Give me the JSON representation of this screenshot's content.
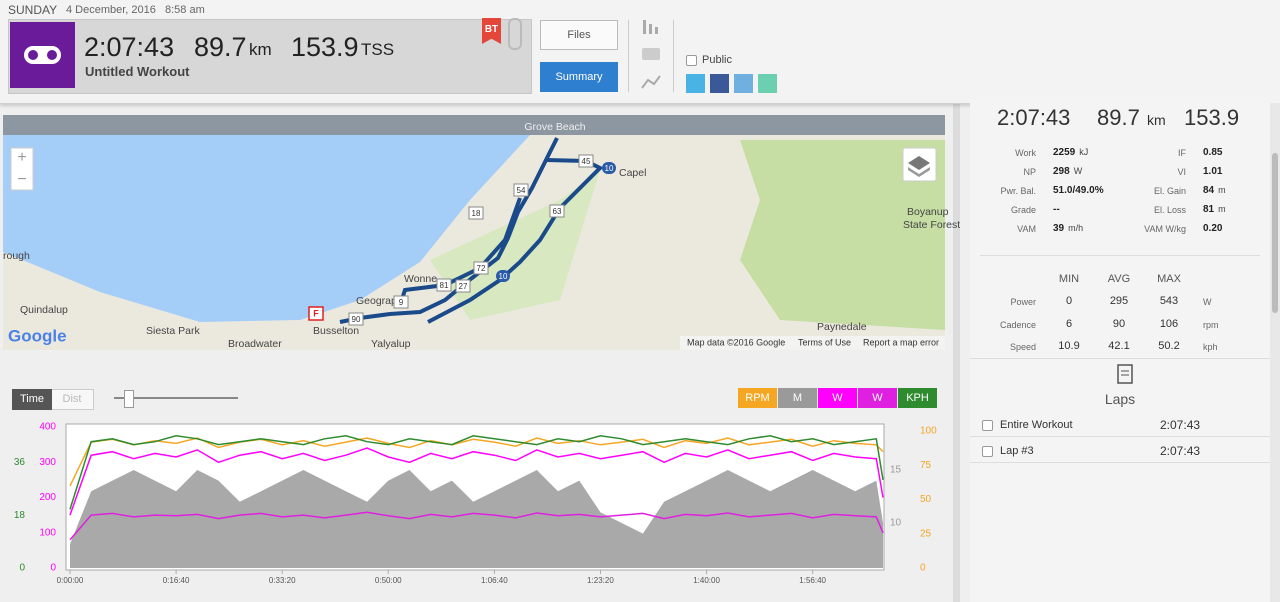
{
  "header": {
    "day": "SUNDAY",
    "date": "4 December, 2016",
    "time": "8:58 am",
    "duration": "2:07:43",
    "distance": "89.7",
    "distance_unit": "km",
    "tss": "153.9",
    "tss_unit": "TSS",
    "workout_title": "Untitled Workout",
    "badge": "BT",
    "buttons": [
      "Files",
      "Summary"
    ],
    "public_label": "Public"
  },
  "map": {
    "labels": [
      "Grove Beach",
      "Capel",
      "Boyanup",
      "State Forest",
      "rough",
      "Quindalup",
      "Siesta Park",
      "Broadwater",
      "Busselton",
      "Yalyalup",
      "Paynedale",
      "Geograp",
      "Wonne"
    ],
    "route_markers": [
      "45",
      "10",
      "54",
      "18",
      "63",
      "72",
      "10",
      "81",
      "27",
      "9",
      "90"
    ],
    "start_flag": "F",
    "logo": "Google",
    "attribution": "Map data ©2016 Google",
    "terms": "Terms of Use",
    "report": "Report a map error"
  },
  "summary": {
    "duration": "2:07:43",
    "distance": "89.7",
    "distance_unit": "km",
    "tss": "153.9",
    "metrics": [
      {
        "left": {
          "label": "Work",
          "value": "2259",
          "unit": "kJ"
        },
        "right": {
          "label": "IF",
          "value": "0.85"
        }
      },
      {
        "left": {
          "label": "NP",
          "value": "298",
          "unit": "W"
        },
        "right": {
          "label": "VI",
          "value": "1.01"
        }
      },
      {
        "left": {
          "label": "Pwr. Bal.",
          "value": "51.0/49.0%"
        },
        "right": {
          "label": "El. Gain",
          "value": "84",
          "unit": "m"
        }
      },
      {
        "left": {
          "label": "Grade",
          "value": "--"
        },
        "right": {
          "label": "El. Loss",
          "value": "81",
          "unit": "m"
        }
      },
      {
        "left": {
          "label": "VAM",
          "value": "39",
          "unit": "m/h"
        },
        "right": {
          "label": "VAM W/kg",
          "value": "0.20"
        }
      }
    ],
    "range_table": {
      "headers": [
        "MIN",
        "AVG",
        "MAX"
      ],
      "rows": [
        {
          "label": "Power",
          "values": [
            "0",
            "295",
            "543"
          ],
          "unit": "W"
        },
        {
          "label": "Cadence",
          "values": [
            "6",
            "90",
            "106"
          ],
          "unit": "rpm"
        },
        {
          "label": "Speed",
          "values": [
            "10.9",
            "42.1",
            "50.2"
          ],
          "unit": "kph"
        }
      ]
    }
  },
  "laps": {
    "title": "Laps",
    "rows": [
      {
        "name": "Entire Workout",
        "duration": "2:07:43"
      },
      {
        "name": "Lap #3",
        "duration": "2:07:43"
      }
    ]
  },
  "chart_controls": {
    "toggle": [
      "Time",
      "Dist"
    ]
  },
  "chart_data": {
    "type": "line",
    "x": [
      0,
      200,
      400,
      600,
      800,
      1000,
      1200,
      1400,
      1600,
      1800,
      2000,
      2200,
      2400,
      2600,
      2800,
      3000,
      3200,
      3400,
      3600,
      3800,
      4000,
      4200,
      4400,
      4600,
      4800,
      5000,
      5200,
      5400,
      5600,
      5800,
      6000,
      6200,
      6400,
      6600,
      6800,
      7000,
      7200,
      7400,
      7600,
      7663
    ],
    "xlim": [
      0,
      7663
    ],
    "xticks": [
      {
        "value": 0,
        "label": "0:00:00"
      },
      {
        "value": 1000,
        "label": "0:16:40"
      },
      {
        "value": 2000,
        "label": "0:33:20"
      },
      {
        "value": 3000,
        "label": "0:50:00"
      },
      {
        "value": 4000,
        "label": "1:06:40"
      },
      {
        "value": 5000,
        "label": "1:23:20"
      },
      {
        "value": 6000,
        "label": "1:40:00"
      },
      {
        "value": 7000,
        "label": "1:56:40"
      }
    ],
    "ylim": [
      0,
      400
    ],
    "yticks": [
      0,
      100,
      200,
      300,
      400
    ],
    "y2lim": [
      0,
      103
    ],
    "y2ticks": [
      0,
      25,
      50,
      75,
      100
    ],
    "y3lim": [
      0,
      48
    ],
    "y3ticks": [
      0,
      18,
      36
    ],
    "y4lim": [
      5.75,
      19.06
    ],
    "y4ticks": [
      10,
      15
    ],
    "series": [
      {
        "name": "RPM",
        "color": "#f5a623",
        "axis": "y2",
        "values": [
          60,
          92,
          94,
          90,
          93,
          91,
          95,
          88,
          92,
          94,
          90,
          93,
          89,
          92,
          95,
          91,
          88,
          93,
          90,
          94,
          92,
          89,
          95,
          91,
          93,
          90,
          92,
          94,
          88,
          93,
          91,
          95,
          90,
          92,
          94,
          89,
          93,
          91,
          90,
          85
        ]
      },
      {
        "name": "M",
        "color": "#9a9a9a",
        "axis": "y4",
        "style": "area",
        "values": [
          8,
          13,
          14,
          15,
          14,
          13,
          15,
          14,
          12,
          13,
          14,
          15,
          14,
          13,
          12,
          14,
          15,
          13,
          14,
          12,
          13,
          14,
          15,
          13,
          14,
          11,
          10,
          9,
          12,
          13,
          14,
          15,
          14,
          13,
          14,
          15,
          14,
          13,
          14,
          10
        ]
      },
      {
        "name": "W",
        "color": "#ff00ff",
        "axis": "y",
        "values": [
          150,
          320,
          330,
          310,
          325,
          315,
          335,
          300,
          320,
          330,
          310,
          325,
          305,
          320,
          340,
          315,
          300,
          325,
          310,
          330,
          320,
          305,
          335,
          315,
          325,
          310,
          320,
          330,
          300,
          325,
          315,
          335,
          310,
          320,
          330,
          305,
          325,
          315,
          310,
          200
        ]
      },
      {
        "name": "W",
        "color": "#e020e0",
        "axis": "y",
        "values": [
          80,
          150,
          155,
          145,
          150,
          148,
          152,
          140,
          150,
          155,
          145,
          150,
          142,
          150,
          158,
          148,
          140,
          152,
          145,
          155,
          150,
          142,
          156,
          148,
          152,
          145,
          150,
          155,
          140,
          152,
          148,
          156,
          145,
          150,
          155,
          142,
          152,
          148,
          145,
          100
        ]
      },
      {
        "name": "KPH",
        "color": "#2e8b2e",
        "axis": "y3",
        "values": [
          20,
          43,
          44,
          42,
          43,
          45,
          44,
          42,
          43,
          44,
          43,
          42,
          44,
          45,
          43,
          42,
          44,
          43,
          42,
          45,
          44,
          43,
          42,
          44,
          43,
          45,
          44,
          42,
          43,
          44,
          43,
          42,
          44,
          45,
          43,
          44,
          42,
          43,
          44,
          30
        ]
      }
    ]
  }
}
